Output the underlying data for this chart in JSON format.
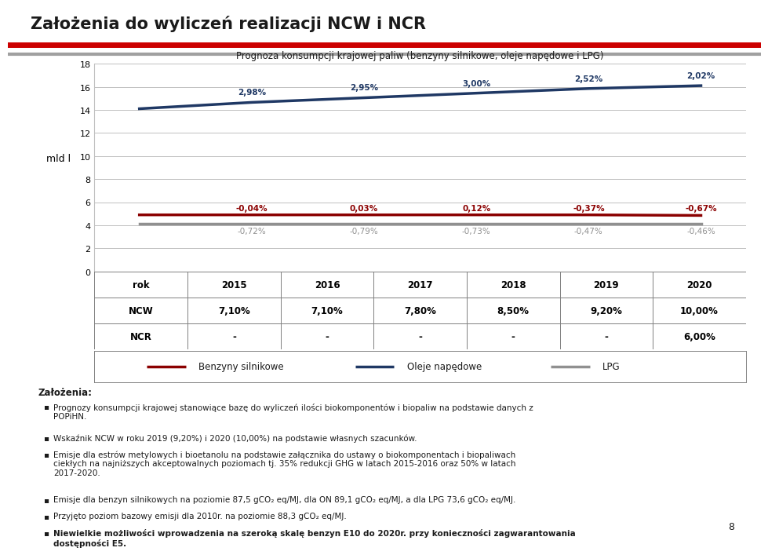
{
  "title": "Założenia do wyliczeń realizacji NCW i NCR",
  "chart_title": "Prognoza konsumpcji krajowej paliw (benzyny silnikowe, oleje napędowe i LPG)",
  "years": [
    2015,
    2016,
    2017,
    2018,
    2019,
    2020
  ],
  "benzyny": [
    14.1,
    14.65,
    15.05,
    15.45,
    15.85,
    16.1
  ],
  "oleje": [
    4.9,
    4.9,
    4.9,
    4.9,
    4.9,
    4.85
  ],
  "lpg": [
    4.1,
    4.1,
    4.1,
    4.1,
    4.1,
    4.1
  ],
  "benzyny_color": "#1F3864",
  "oleje_color": "#8B0000",
  "lpg_color": "#909090",
  "benzyny_pct": [
    "",
    "2,98%",
    "2,95%",
    "3,00%",
    "2,52%",
    "2,02%"
  ],
  "oleje_pct": [
    "",
    "-0,04%",
    "0,03%",
    "0,12%",
    "-0,37%",
    "-0,67%"
  ],
  "lpg_pct": [
    "",
    "-0,72%",
    "-0,79%",
    "-0,73%",
    "-0,47%",
    "-0,46%"
  ],
  "benzyny_pct_color": "#1F3864",
  "oleje_pct_color": "#8B0000",
  "lpg_pct_color": "#909090",
  "ylim": [
    0,
    18
  ],
  "yticks": [
    0,
    2,
    4,
    6,
    8,
    10,
    12,
    14,
    16,
    18
  ],
  "ylabel": "mld l",
  "table_rows": [
    "rok",
    "NCW",
    "NCR"
  ],
  "table_years": [
    "2015",
    "2016",
    "2017",
    "2018",
    "2019",
    "2020"
  ],
  "table_ncw": [
    "7,10%",
    "7,10%",
    "7,80%",
    "8,50%",
    "9,20%",
    "10,00%"
  ],
  "table_ncr": [
    "-",
    "-",
    "-",
    "-",
    "-",
    "6,00%"
  ],
  "legend_entries": [
    "Benzyny silnikowe",
    "Oleje napędowe",
    "LPG"
  ],
  "background_color": "#FFFFFF",
  "grid_color": "#C0C0C0",
  "header_red": "#CC0000",
  "header_gray": "#A0A0A0",
  "footer_red": "#CC0000",
  "title_color": "#1a1a1a",
  "bullet_text": [
    "Prognozy konsumpcji krajowej stanowiące bazę do wyliczeń ilości biokomponentów i biopaliw na podstawie danych z POPiHN.",
    "Wskaźnik NCW w roku 2019 (9,20%) i 2020 (10,00%) na podstawie własnych szacunków.",
    "Emisje dla estrów metylowych i bioetanolu na podstawie załącznika do ustawy o biokomponentach i biopaliwach ciekłych na najniższych akceptowalnych poziomach tj. 35% redukcji GHG w latach 2015-2016 oraz 50% w latach 2017-2020.",
    "Emisje dla benzyn silnikowych na poziomie 87,5 gCO₂ eq/MJ, dla ON 89,1 gCO₂ eq/MJ, a dla LPG 73,6 gCO₂ eq/MJ.",
    "Przyjęto poziom bazowy emisji dla 2010r. na poziomie 88,3 gCO₂ eq/MJ.",
    "Niewielkie możliwości wprowadzenia na szeroką skalę benzyn E10 do 2020r. przy konieczności zagwarantowania dostępności E5."
  ],
  "bullet_bold": [
    false,
    false,
    false,
    false,
    false,
    true
  ]
}
